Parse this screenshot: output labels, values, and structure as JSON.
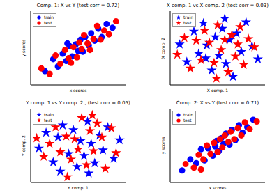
{
  "chart_data": [
    {
      "type": "scatter",
      "title": "Comp. 1: X vs Y (test corr = 0.72)",
      "x_label": "x scores",
      "y_label": "y scores",
      "xlim": [
        -4,
        4
      ],
      "ylim": [
        -4,
        4
      ],
      "tick_labels": false,
      "legend": "upper left",
      "series": [
        {
          "name": "train",
          "color": "#0000ff",
          "marker": "o",
          "x": [
            -2.8,
            -2.1,
            -1.7,
            -1.3,
            -1.0,
            -0.7,
            -0.5,
            -0.2,
            0.0,
            0.2,
            0.4,
            0.6,
            0.9,
            1.1,
            1.4,
            1.7,
            2.0,
            2.4,
            2.9,
            -0.9
          ],
          "y": [
            -2.5,
            -1.2,
            -2.0,
            -0.6,
            -1.4,
            0.2,
            -0.9,
            0.4,
            -0.3,
            0.9,
            -0.4,
            1.2,
            0.3,
            1.6,
            0.8,
            2.1,
            1.2,
            2.6,
            2.2,
            0.5
          ]
        },
        {
          "name": "test",
          "color": "#ff0000",
          "marker": "o",
          "x": [
            -3.1,
            -2.4,
            -1.9,
            -1.5,
            -1.1,
            -0.8,
            -0.4,
            -0.1,
            0.1,
            0.3,
            0.5,
            0.8,
            1.0,
            1.3,
            1.6,
            1.9,
            2.2,
            2.6,
            3.2,
            -0.6
          ],
          "y": [
            -2.2,
            -2.8,
            -0.8,
            -1.7,
            -0.2,
            -1.1,
            0.1,
            -1.0,
            0.6,
            -0.1,
            1.4,
            0.5,
            -0.2,
            1.0,
            2.4,
            0.9,
            1.9,
            1.5,
            2.9,
            -1.6
          ]
        }
      ]
    },
    {
      "type": "scatter",
      "title": "X comp. 1 vs X comp. 2 (test corr = 0.03)",
      "x_label": "X comp. 1",
      "y_label": "X comp. 2",
      "xlim": [
        -4,
        4
      ],
      "ylim": [
        -4,
        4
      ],
      "tick_labels": false,
      "legend": "upper left",
      "series": [
        {
          "name": "train",
          "color": "#0000ff",
          "marker": "*",
          "x": [
            -3.2,
            -2.6,
            -2.0,
            -1.6,
            -1.2,
            -0.9,
            -0.5,
            -0.2,
            0.1,
            0.4,
            0.7,
            1.0,
            1.3,
            1.6,
            2.0,
            2.4,
            2.9,
            3.4,
            -1.0,
            0.6
          ],
          "y": [
            0.4,
            -1.5,
            1.8,
            -0.6,
            2.7,
            0.3,
            -2.4,
            1.2,
            -0.8,
            2.1,
            -1.7,
            0.9,
            -3.1,
            1.6,
            -0.4,
            2.8,
            0.2,
            -1.2,
            -1.1,
            3.2
          ]
        },
        {
          "name": "test",
          "color": "#ff0000",
          "marker": "*",
          "x": [
            -3.4,
            -2.8,
            -2.3,
            -1.8,
            -1.4,
            -1.1,
            -0.7,
            -0.3,
            0.0,
            0.3,
            0.6,
            0.9,
            1.2,
            1.5,
            1.9,
            2.2,
            2.6,
            3.1,
            -0.1,
            1.7
          ],
          "y": [
            -0.7,
            1.1,
            -2.2,
            0.8,
            -1.3,
            1.9,
            0.6,
            -1.6,
            2.5,
            -0.2,
            0.9,
            -2.6,
            1.4,
            -0.9,
            2.3,
            -1.8,
            1.0,
            0.1,
            -3.3,
            0.4
          ]
        }
      ]
    },
    {
      "type": "scatter",
      "title": "Y comp. 1 vs Y comp. 2 , (test corr = 0.05)",
      "x_label": "Y comp. 1",
      "y_label": "Y comp. 2",
      "xlim": [
        -4,
        4
      ],
      "ylim": [
        -4,
        4
      ],
      "tick_labels": false,
      "legend": "upper left",
      "series": [
        {
          "name": "train",
          "color": "#0000ff",
          "marker": "*",
          "x": [
            -3.3,
            -2.7,
            -2.1,
            -1.7,
            -1.3,
            -0.8,
            -0.4,
            -0.1,
            0.2,
            0.5,
            0.8,
            1.1,
            1.4,
            1.8,
            2.1,
            2.5,
            3.0,
            3.5,
            -1.5,
            0.9
          ],
          "y": [
            -0.3,
            1.4,
            -1.8,
            0.9,
            2.2,
            -0.9,
            1.7,
            -2.3,
            0.5,
            -1.1,
            2.6,
            0.2,
            -1.9,
            1.1,
            -0.5,
            2.0,
            -1.4,
            0.6,
            -2.8,
            -3.0
          ]
        },
        {
          "name": "test",
          "color": "#ff0000",
          "marker": "*",
          "x": [
            -3.5,
            -2.9,
            -2.4,
            -1.9,
            -1.5,
            -1.0,
            -0.6,
            -0.3,
            0.0,
            0.3,
            0.7,
            1.0,
            1.3,
            1.6,
            2.0,
            2.3,
            2.8,
            3.2,
            -0.9,
            1.2
          ],
          "y": [
            0.8,
            -1.2,
            0.2,
            2.0,
            -0.7,
            1.0,
            -1.5,
            0.7,
            -0.4,
            3.0,
            -2.1,
            1.6,
            -0.6,
            2.4,
            0.9,
            -2.5,
            1.9,
            -0.8,
            -3.4,
            3.3
          ]
        }
      ]
    },
    {
      "type": "scatter",
      "title": "Comp. 2: X vs Y (test corr = 0.71)",
      "x_label": "x scores",
      "y_label": "y scores",
      "xlim": [
        -4,
        4
      ],
      "ylim": [
        -4,
        4
      ],
      "tick_labels": false,
      "legend": "upper left",
      "series": [
        {
          "name": "train",
          "color": "#0000ff",
          "marker": "o",
          "x": [
            -3.0,
            -2.3,
            -1.8,
            -1.4,
            -1.1,
            -0.8,
            -0.4,
            -0.1,
            0.1,
            0.3,
            0.5,
            0.7,
            1.0,
            1.2,
            1.5,
            1.8,
            2.1,
            2.5,
            3.0,
            -0.2
          ],
          "y": [
            -2.7,
            -1.5,
            -1.9,
            -0.4,
            -1.6,
            -0.3,
            -1.1,
            0.5,
            -0.6,
            0.8,
            0.2,
            1.3,
            0.1,
            1.7,
            0.6,
            2.2,
            1.4,
            2.0,
            2.8,
            -0.1
          ]
        },
        {
          "name": "test",
          "color": "#ff0000",
          "marker": "o",
          "x": [
            -2.7,
            -2.0,
            -1.6,
            -1.2,
            -0.9,
            -0.6,
            -0.3,
            0.0,
            0.2,
            0.4,
            0.6,
            0.9,
            1.1,
            1.4,
            1.7,
            2.0,
            2.3,
            2.7,
            3.3,
            -1.4
          ],
          "y": [
            -2.0,
            -2.4,
            -1.0,
            -1.5,
            0.0,
            -0.9,
            0.3,
            -0.7,
            0.7,
            -0.2,
            1.1,
            0.4,
            1.5,
            0.7,
            1.9,
            1.1,
            2.5,
            1.8,
            2.6,
            -2.6
          ]
        }
      ]
    }
  ]
}
